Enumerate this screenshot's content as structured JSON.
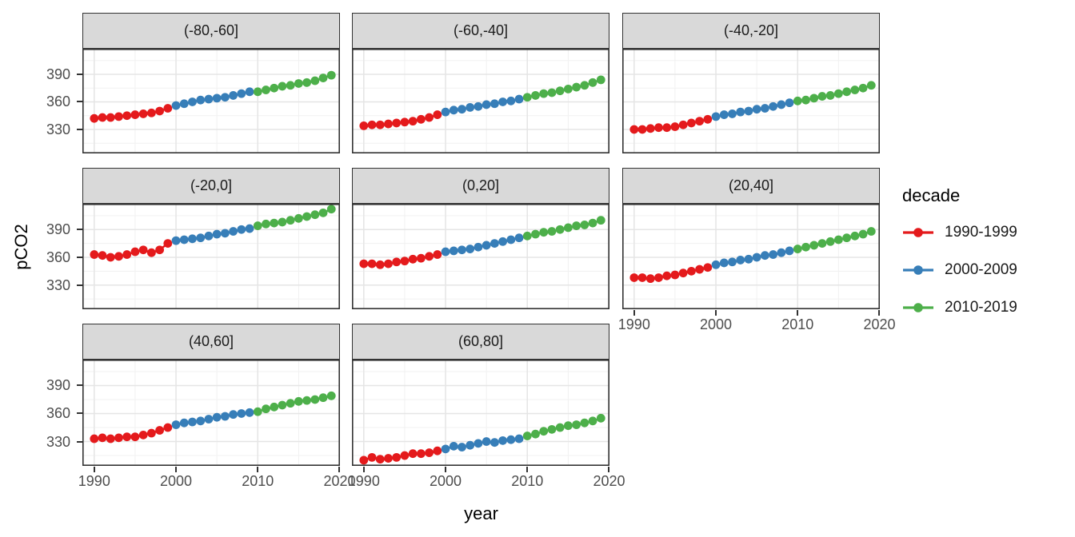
{
  "chart_data": {
    "type": "scatter",
    "title": "",
    "xlabel": "year",
    "ylabel": "pCO2",
    "x_ticks": [
      1990,
      2000,
      2010,
      2020
    ],
    "x_minor_ticks": [
      1995,
      2005,
      2015
    ],
    "y_ticks": [
      330,
      360,
      390
    ],
    "y_minor_ticks": [
      315,
      345,
      375,
      405
    ],
    "xlim": [
      1988.55,
      2020.05
    ],
    "ylim": [
      303.9,
      417.8
    ],
    "grid": "on",
    "legend_position": "right",
    "legend": {
      "title": "decade",
      "entries": [
        {
          "label": "1990-1999",
          "color": "#E41A1C"
        },
        {
          "label": "2000-2009",
          "color": "#377EB8"
        },
        {
          "label": "2010-2019",
          "color": "#4DAF4A"
        }
      ]
    },
    "facets": [
      {
        "label": "(-80,-60]",
        "series": [
          {
            "name": "1990-1999",
            "start_year": 1990,
            "values": [
              342,
              343,
              343,
              344,
              345,
              346,
              347,
              348,
              350,
              353
            ]
          },
          {
            "name": "2000-2009",
            "start_year": 2000,
            "values": [
              356,
              358,
              360,
              362,
              363,
              364,
              365,
              367,
              369,
              371
            ]
          },
          {
            "name": "2010-2019",
            "start_year": 2010,
            "values": [
              371,
              373,
              375,
              377,
              378,
              380,
              381,
              383,
              386,
              389
            ]
          }
        ]
      },
      {
        "label": "(-60,-40]",
        "series": [
          {
            "name": "1990-1999",
            "start_year": 1990,
            "values": [
              334,
              335,
              335,
              336,
              337,
              338,
              339,
              341,
              343,
              346
            ]
          },
          {
            "name": "2000-2009",
            "start_year": 2000,
            "values": [
              349,
              351,
              352,
              354,
              355,
              357,
              358,
              360,
              361,
              363
            ]
          },
          {
            "name": "2010-2019",
            "start_year": 2010,
            "values": [
              365,
              367,
              369,
              370,
              372,
              374,
              376,
              378,
              381,
              384
            ]
          }
        ]
      },
      {
        "label": "(-40,-20]",
        "series": [
          {
            "name": "1990-1999",
            "start_year": 1990,
            "values": [
              330,
              330,
              331,
              332,
              332,
              333,
              335,
              337,
              339,
              341
            ]
          },
          {
            "name": "2000-2009",
            "start_year": 2000,
            "values": [
              344,
              346,
              347,
              349,
              350,
              352,
              353,
              355,
              357,
              359
            ]
          },
          {
            "name": "2010-2019",
            "start_year": 2010,
            "values": [
              361,
              362,
              364,
              366,
              367,
              369,
              371,
              373,
              375,
              378
            ]
          }
        ]
      },
      {
        "label": "(-20,0]",
        "series": [
          {
            "name": "1990-1999",
            "start_year": 1990,
            "values": [
              363,
              362,
              360,
              361,
              363,
              366,
              368,
              365,
              368,
              375
            ]
          },
          {
            "name": "2000-2009",
            "start_year": 2000,
            "values": [
              378,
              379,
              380,
              381,
              383,
              385,
              386,
              388,
              390,
              391
            ]
          },
          {
            "name": "2010-2019",
            "start_year": 2010,
            "values": [
              394,
              396,
              397,
              398,
              400,
              402,
              404,
              406,
              408,
              412
            ]
          }
        ]
      },
      {
        "label": "(0,20]",
        "series": [
          {
            "name": "1990-1999",
            "start_year": 1990,
            "values": [
              353,
              353,
              352,
              353,
              355,
              356,
              358,
              359,
              361,
              363
            ]
          },
          {
            "name": "2000-2009",
            "start_year": 2000,
            "values": [
              366,
              367,
              368,
              369,
              371,
              373,
              375,
              377,
              379,
              381
            ]
          },
          {
            "name": "2010-2019",
            "start_year": 2010,
            "values": [
              383,
              385,
              387,
              388,
              390,
              392,
              394,
              395,
              397,
              400
            ]
          }
        ]
      },
      {
        "label": "(20,40]",
        "series": [
          {
            "name": "1990-1999",
            "start_year": 1990,
            "values": [
              338,
              338,
              337,
              338,
              340,
              341,
              343,
              345,
              347,
              349
            ]
          },
          {
            "name": "2000-2009",
            "start_year": 2000,
            "values": [
              352,
              354,
              355,
              357,
              358,
              360,
              362,
              363,
              365,
              367
            ]
          },
          {
            "name": "2010-2019",
            "start_year": 2010,
            "values": [
              369,
              371,
              373,
              375,
              377,
              379,
              381,
              383,
              385,
              388
            ]
          }
        ]
      },
      {
        "label": "(40,60]",
        "series": [
          {
            "name": "1990-1999",
            "start_year": 1990,
            "values": [
              333,
              334,
              333,
              334,
              335,
              335,
              337,
              339,
              342,
              345
            ]
          },
          {
            "name": "2000-2009",
            "start_year": 2000,
            "values": [
              348,
              350,
              351,
              352,
              354,
              356,
              357,
              359,
              360,
              361
            ]
          },
          {
            "name": "2010-2019",
            "start_year": 2010,
            "values": [
              362,
              365,
              367,
              369,
              371,
              373,
              374,
              375,
              377,
              379
            ]
          }
        ]
      },
      {
        "label": "(60,80]",
        "series": [
          {
            "name": "1990-1999",
            "start_year": 1990,
            "values": [
              310,
              313,
              311,
              312,
              313,
              315,
              317,
              317,
              318,
              320
            ]
          },
          {
            "name": "2000-2009",
            "start_year": 2000,
            "values": [
              322,
              325,
              324,
              326,
              328,
              330,
              329,
              331,
              332,
              333
            ]
          },
          {
            "name": "2010-2019",
            "start_year": 2010,
            "values": [
              336,
              338,
              341,
              343,
              345,
              347,
              348,
              350,
              352,
              355
            ]
          }
        ]
      }
    ],
    "style": {
      "strip_fill": "#d9d9d9",
      "panel_border": "#333333",
      "grid_major": "#e5e5e5",
      "grid_minor": "#f1f1f1",
      "axis_text": "#4d4d4d",
      "point_radius": 5.4
    }
  }
}
